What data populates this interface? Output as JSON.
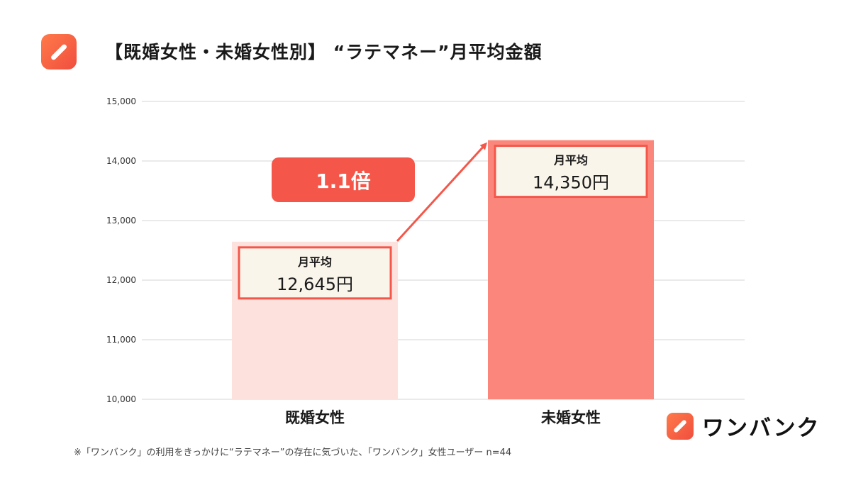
{
  "title": "【既婚女性・未婚女性別】 “ラテマネー”月平均金額",
  "badge": "1.1倍",
  "brand": {
    "name": "ワンバンク"
  },
  "footnote": "※「ワンバンク」の利用をきっかけに“ラテマネー”の存在に気づいた、「ワンバンク」女性ユーザー n=44",
  "colors": {
    "accent": "#f4574a",
    "bar_married": "#fde1dd",
    "bar_single": "#fb877c",
    "label_bg": "#faf5ea"
  },
  "icons": [
    "app-logo-icon",
    "trend-arrow-icon"
  ],
  "chart_data": {
    "type": "bar",
    "title": "",
    "xlabel": "",
    "ylabel": "",
    "ylim": [
      10000,
      15000
    ],
    "yticks": [
      10000,
      11000,
      12000,
      13000,
      14000,
      15000
    ],
    "ytick_labels": [
      "10,000",
      "11,000",
      "12,000",
      "13,000",
      "14,000",
      "15,000"
    ],
    "grid": true,
    "categories": [
      "既婚女性",
      "未婚女性"
    ],
    "values": [
      12645,
      14350
    ],
    "data_labels": [
      {
        "top": "月平均",
        "value": "12,645円"
      },
      {
        "top": "月平均",
        "value": "14,350円"
      }
    ]
  }
}
